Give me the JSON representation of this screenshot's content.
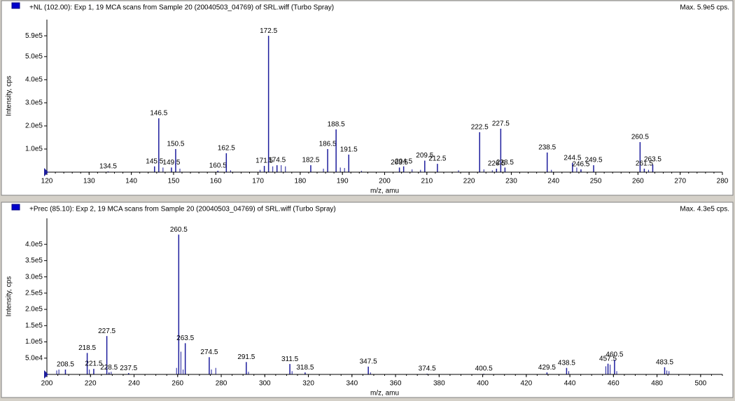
{
  "chart_data": [
    {
      "type": "spectrum",
      "title": "+NL (102.00): Exp 1, 19 MCA scans from Sample 20 (20040503_04769) of SRL.wiff (Turbo Spray)",
      "subtitle": "Max. 5.9e5 cps.",
      "x_label": "m/z, amu",
      "y_label": "Intensity, cps",
      "color": "#1c1c9c",
      "xlim": [
        120,
        280
      ],
      "xticks": [
        120,
        130,
        140,
        150,
        160,
        170,
        180,
        190,
        200,
        210,
        220,
        230,
        240,
        250,
        260,
        270,
        280
      ],
      "ylim": [
        0,
        660000
      ],
      "yticks": [
        {
          "value": 100000,
          "label": "1.0e5"
        },
        {
          "value": 200000,
          "label": "2.0e5"
        },
        {
          "value": 300000,
          "label": "3.0e5"
        },
        {
          "value": 400000,
          "label": "4.0e5"
        },
        {
          "value": 500000,
          "label": "5.0e5"
        },
        {
          "value": 590000,
          "label": "5.9e5"
        }
      ],
      "x": [
        134.5,
        145.5,
        146.5,
        149.5,
        150.5,
        160.5,
        162.5,
        171.5,
        172.5,
        174.5,
        182.5,
        186.5,
        188.5,
        191.5,
        203.5,
        204.5,
        209.5,
        212.5,
        222.5,
        226.5,
        227.5,
        228.5,
        238.5,
        244.5,
        246.5,
        249.5,
        260.5,
        261.5,
        263.5
      ],
      "values": [
        3000,
        25000,
        233000,
        20000,
        100000,
        6000,
        82000,
        27000,
        590000,
        30000,
        30000,
        100000,
        185000,
        76000,
        20000,
        25000,
        50000,
        36000,
        173000,
        15000,
        188000,
        20000,
        85000,
        40000,
        12000,
        30000,
        130000,
        15000,
        33000
      ],
      "minor_x": [
        147.5,
        151.5,
        163.5,
        170.5,
        173.5,
        175.5,
        176.5,
        185.5,
        189.5,
        190.5,
        194.5,
        206.5,
        208.5,
        217.5,
        223.5,
        225.5,
        239.5,
        245.5,
        262.5
      ],
      "minor_values": [
        20000,
        15000,
        8000,
        10000,
        25000,
        30000,
        25000,
        15000,
        20000,
        18000,
        6000,
        12000,
        10000,
        8000,
        12000,
        8000,
        10000,
        20000,
        10000
      ]
    },
    {
      "type": "spectrum",
      "title": "+Prec (85.10): Exp 2, 19 MCA scans from Sample 20 (20040503_04769) of SRL.wiff (Turbo Spray)",
      "subtitle": "Max. 4.3e5 cps.",
      "x_label": "m/z, amu",
      "y_label": "Intensity, cps",
      "color": "#1c1c9c",
      "xlim": [
        200,
        510
      ],
      "xticks": [
        200,
        220,
        240,
        260,
        280,
        300,
        320,
        340,
        360,
        380,
        400,
        420,
        440,
        460,
        480,
        500
      ],
      "ylim": [
        0,
        480000
      ],
      "yticks": [
        {
          "value": 50000,
          "label": "5.0e4"
        },
        {
          "value": 100000,
          "label": "1.0e5"
        },
        {
          "value": 150000,
          "label": "1.5e5"
        },
        {
          "value": 200000,
          "label": "2.0e5"
        },
        {
          "value": 250000,
          "label": "2.5e5"
        },
        {
          "value": 300000,
          "label": "3.0e5"
        },
        {
          "value": 350000,
          "label": "3.5e5"
        },
        {
          "value": 400000,
          "label": "4.0e5"
        }
      ],
      "x": [
        208.5,
        218.5,
        221.5,
        227.5,
        228.5,
        237.5,
        260.5,
        263.5,
        274.5,
        291.5,
        311.5,
        318.5,
        347.5,
        374.5,
        400.5,
        429.5,
        438.5,
        457.5,
        460.5,
        483.5
      ],
      "values": [
        15000,
        66000,
        17000,
        118000,
        6000,
        4000,
        430000,
        96000,
        53000,
        38000,
        32000,
        6000,
        24000,
        2000,
        2000,
        6000,
        20000,
        33000,
        45000,
        22000
      ],
      "minor_x": [
        204.5,
        205.5,
        219.5,
        229.5,
        259.5,
        261.5,
        262.5,
        275.5,
        277.5,
        292.5,
        312.5,
        348.5,
        439.5,
        456.5,
        458.5,
        461.5,
        484.5,
        485.5
      ],
      "minor_values": [
        12000,
        15000,
        15000,
        8000,
        20000,
        70000,
        15000,
        15000,
        20000,
        8000,
        10000,
        6000,
        10000,
        25000,
        30000,
        10000,
        12000,
        10000
      ]
    }
  ]
}
